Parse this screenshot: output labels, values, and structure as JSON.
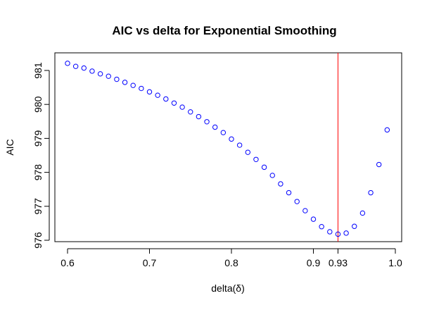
{
  "chart_data": {
    "type": "scatter",
    "title": "AIC vs delta for Exponential Smoothing",
    "xlabel": "delta(δ)",
    "ylabel": "AIC",
    "xlim": [
      0.6,
      1.0
    ],
    "ylim": [
      976,
      981.2
    ],
    "x_ticks": [
      {
        "value": 0.6,
        "label": "0.6"
      },
      {
        "value": 0.7,
        "label": "0.7"
      },
      {
        "value": 0.8,
        "label": "0.8"
      },
      {
        "value": 0.9,
        "label": "0.9"
      },
      {
        "value": 0.93,
        "label": "0.93"
      },
      {
        "value": 1.0,
        "label": "1.0"
      }
    ],
    "y_ticks": [
      {
        "value": 976,
        "label": "976"
      },
      {
        "value": 977,
        "label": "977"
      },
      {
        "value": 978,
        "label": "978"
      },
      {
        "value": 979,
        "label": "979"
      },
      {
        "value": 980,
        "label": "980"
      },
      {
        "value": 981,
        "label": "981"
      }
    ],
    "marker": "open-circle",
    "point_color": "#0000ff",
    "vline": {
      "x": 0.93,
      "color": "#ff0000"
    },
    "grid": false,
    "points": [
      {
        "x": 0.6,
        "y": 981.21
      },
      {
        "x": 0.61,
        "y": 981.12
      },
      {
        "x": 0.62,
        "y": 981.07
      },
      {
        "x": 0.63,
        "y": 980.98
      },
      {
        "x": 0.64,
        "y": 980.9
      },
      {
        "x": 0.65,
        "y": 980.83
      },
      {
        "x": 0.66,
        "y": 980.74
      },
      {
        "x": 0.67,
        "y": 980.65
      },
      {
        "x": 0.68,
        "y": 980.56
      },
      {
        "x": 0.69,
        "y": 980.47
      },
      {
        "x": 0.7,
        "y": 980.37
      },
      {
        "x": 0.71,
        "y": 980.27
      },
      {
        "x": 0.72,
        "y": 980.16
      },
      {
        "x": 0.73,
        "y": 980.04
      },
      {
        "x": 0.74,
        "y": 979.92
      },
      {
        "x": 0.75,
        "y": 979.78
      },
      {
        "x": 0.76,
        "y": 979.64
      },
      {
        "x": 0.77,
        "y": 979.49
      },
      {
        "x": 0.78,
        "y": 979.33
      },
      {
        "x": 0.79,
        "y": 979.17
      },
      {
        "x": 0.8,
        "y": 978.98
      },
      {
        "x": 0.81,
        "y": 978.8
      },
      {
        "x": 0.82,
        "y": 978.59
      },
      {
        "x": 0.83,
        "y": 978.38
      },
      {
        "x": 0.84,
        "y": 978.15
      },
      {
        "x": 0.85,
        "y": 977.91
      },
      {
        "x": 0.86,
        "y": 977.66
      },
      {
        "x": 0.87,
        "y": 977.4
      },
      {
        "x": 0.88,
        "y": 977.14
      },
      {
        "x": 0.89,
        "y": 976.87
      },
      {
        "x": 0.9,
        "y": 976.62
      },
      {
        "x": 0.91,
        "y": 976.4
      },
      {
        "x": 0.92,
        "y": 976.25
      },
      {
        "x": 0.93,
        "y": 976.18
      },
      {
        "x": 0.94,
        "y": 976.21
      },
      {
        "x": 0.95,
        "y": 976.41
      },
      {
        "x": 0.96,
        "y": 976.8
      },
      {
        "x": 0.97,
        "y": 977.4
      },
      {
        "x": 0.98,
        "y": 978.23
      },
      {
        "x": 0.99,
        "y": 979.25
      }
    ]
  }
}
